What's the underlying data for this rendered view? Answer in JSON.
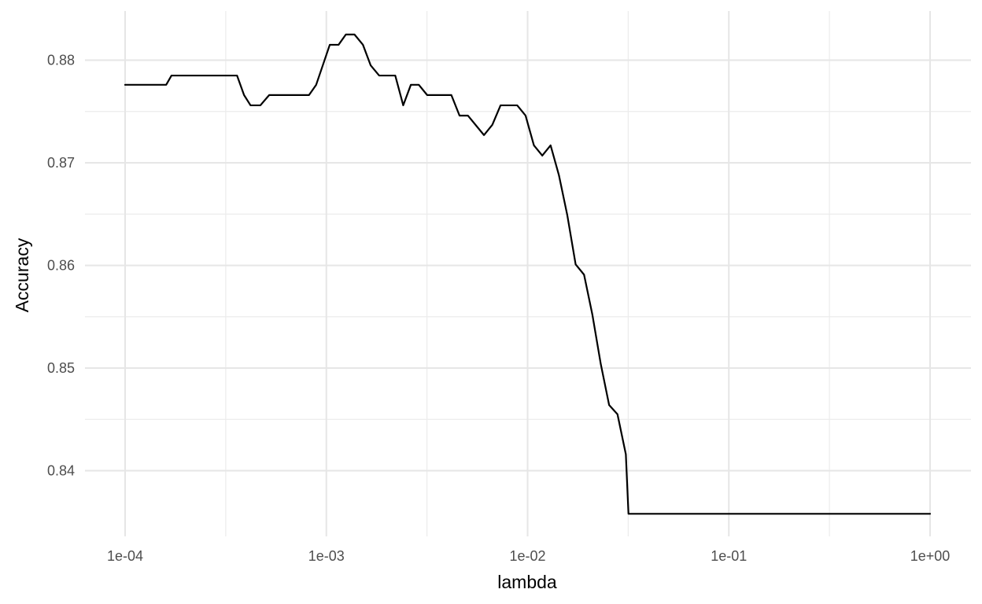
{
  "chart_data": {
    "type": "line",
    "title": "",
    "xlabel": "lambda",
    "ylabel": "Accuracy",
    "x_scale": "log10",
    "xlim": [
      0.0001,
      1
    ],
    "ylim": [
      0.8355,
      0.8848
    ],
    "x_ticks": [
      0.0001,
      0.001,
      0.01,
      0.1,
      1
    ],
    "x_tick_labels": [
      "1e-04",
      "1e-03",
      "1e-02",
      "1e-01",
      "1e+00"
    ],
    "y_ticks": [
      0.84,
      0.85,
      0.86,
      0.87,
      0.88
    ],
    "y_tick_labels": [
      "0.84",
      "0.85",
      "0.86",
      "0.87",
      "0.88"
    ],
    "grid": true,
    "line_color": "#000000",
    "series": [
      {
        "x": [
          0.0001,
          0.00016,
          0.00017,
          0.00036,
          0.00039,
          0.00042,
          0.00047,
          0.00052,
          0.00082,
          0.00089,
          0.00104,
          0.00115,
          0.00125,
          0.00138,
          0.00152,
          0.00166,
          0.00183,
          0.0022,
          0.00241,
          0.00263,
          0.00288,
          0.00317,
          0.00418,
          0.00459,
          0.00505,
          0.00607,
          0.00668,
          0.00734,
          0.00888,
          0.00977,
          0.01075,
          0.01183,
          0.01301,
          0.01431,
          0.01575,
          0.01733,
          0.01908,
          0.02099,
          0.0231,
          0.02542,
          0.02797,
          0.03078,
          0.03172,
          1
        ],
        "y": [
          0.8776,
          0.8776,
          0.8785,
          0.8785,
          0.8766,
          0.8756,
          0.8756,
          0.8766,
          0.8766,
          0.8776,
          0.8815,
          0.8815,
          0.8825,
          0.8825,
          0.8815,
          0.8795,
          0.8785,
          0.8785,
          0.8756,
          0.8776,
          0.8776,
          0.8766,
          0.8766,
          0.8746,
          0.8746,
          0.8727,
          0.8737,
          0.8756,
          0.8756,
          0.8746,
          0.8717,
          0.8707,
          0.8717,
          0.8688,
          0.8649,
          0.8601,
          0.8591,
          0.8552,
          0.8504,
          0.8464,
          0.8455,
          0.8416,
          0.8358,
          0.8358
        ]
      }
    ]
  }
}
